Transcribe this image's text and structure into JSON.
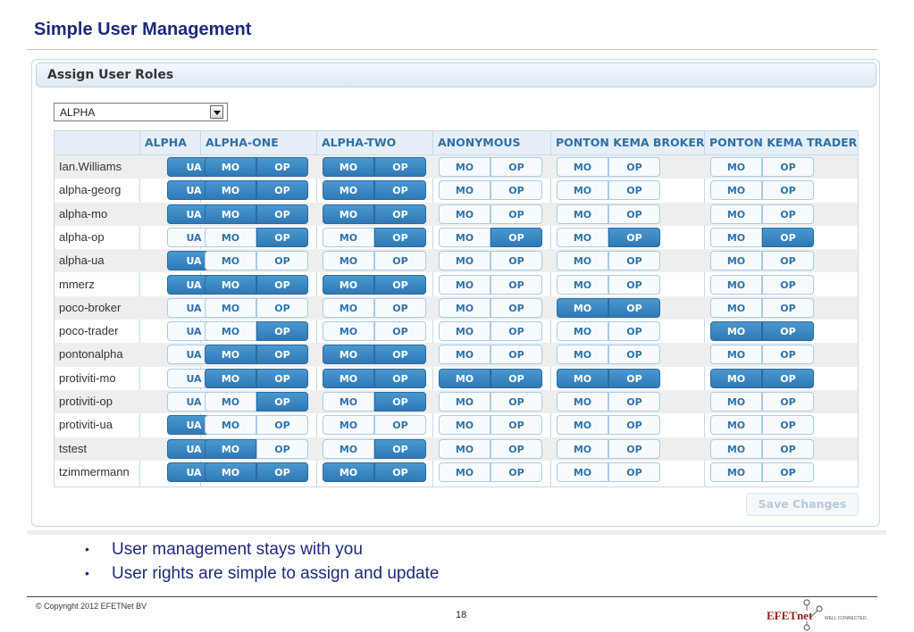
{
  "slide": {
    "title": "Simple User Management",
    "bullets": [
      "User management stays with you",
      "User rights are simple to assign and update"
    ],
    "copyright": "© Copyright 2012 EFETNet BV",
    "page_number": "18",
    "logo_text": "EFETnet",
    "logo_tagline": "WELL CONNECTED."
  },
  "panel": {
    "title": "Assign User Roles",
    "select_value": "ALPHA",
    "save_label": "Save Changes",
    "save_enabled": false
  },
  "colors": {
    "title": "#1d2a7a",
    "active_button": "#3a86c1",
    "header_text": "#2f6fa3"
  },
  "columns": [
    {
      "name": "ALPHA",
      "roles": [
        "UA"
      ]
    },
    {
      "name": "ALPHA-ONE",
      "roles": [
        "MO",
        "OP"
      ]
    },
    {
      "name": "ALPHA-TWO",
      "roles": [
        "MO",
        "OP"
      ]
    },
    {
      "name": "ANONYMOUS",
      "roles": [
        "MO",
        "OP"
      ]
    },
    {
      "name": "PONTON KEMA BROKER",
      "roles": [
        "MO",
        "OP"
      ]
    },
    {
      "name": "PONTON KEMA TRADER",
      "roles": [
        "MO",
        "OP"
      ]
    }
  ],
  "users": [
    {
      "name": "Ian.Williams",
      "roles": [
        [
          1
        ],
        [
          1,
          1
        ],
        [
          1,
          1
        ],
        [
          0,
          0
        ],
        [
          0,
          0
        ],
        [
          0,
          0
        ]
      ]
    },
    {
      "name": "alpha-georg",
      "roles": [
        [
          1
        ],
        [
          1,
          1
        ],
        [
          1,
          1
        ],
        [
          0,
          0
        ],
        [
          0,
          0
        ],
        [
          0,
          0
        ]
      ]
    },
    {
      "name": "alpha-mo",
      "roles": [
        [
          1
        ],
        [
          1,
          1
        ],
        [
          1,
          1
        ],
        [
          0,
          0
        ],
        [
          0,
          0
        ],
        [
          0,
          0
        ]
      ]
    },
    {
      "name": "alpha-op",
      "roles": [
        [
          0
        ],
        [
          0,
          1
        ],
        [
          0,
          1
        ],
        [
          0,
          1
        ],
        [
          0,
          1
        ],
        [
          0,
          1
        ]
      ]
    },
    {
      "name": "alpha-ua",
      "roles": [
        [
          1
        ],
        [
          0,
          0
        ],
        [
          0,
          0
        ],
        [
          0,
          0
        ],
        [
          0,
          0
        ],
        [
          0,
          0
        ]
      ]
    },
    {
      "name": "mmerz",
      "roles": [
        [
          1
        ],
        [
          1,
          1
        ],
        [
          1,
          1
        ],
        [
          0,
          0
        ],
        [
          0,
          0
        ],
        [
          0,
          0
        ]
      ]
    },
    {
      "name": "poco-broker",
      "roles": [
        [
          0
        ],
        [
          0,
          0
        ],
        [
          0,
          0
        ],
        [
          0,
          0
        ],
        [
          1,
          1
        ],
        [
          0,
          0
        ]
      ]
    },
    {
      "name": "poco-trader",
      "roles": [
        [
          0
        ],
        [
          0,
          1
        ],
        [
          0,
          0
        ],
        [
          0,
          0
        ],
        [
          0,
          0
        ],
        [
          1,
          1
        ]
      ]
    },
    {
      "name": "pontonalpha",
      "roles": [
        [
          0
        ],
        [
          1,
          1
        ],
        [
          1,
          1
        ],
        [
          0,
          0
        ],
        [
          0,
          0
        ],
        [
          0,
          0
        ]
      ]
    },
    {
      "name": "protiviti-mo",
      "roles": [
        [
          0
        ],
        [
          1,
          1
        ],
        [
          1,
          1
        ],
        [
          1,
          1
        ],
        [
          1,
          1
        ],
        [
          1,
          1
        ]
      ]
    },
    {
      "name": "protiviti-op",
      "roles": [
        [
          0
        ],
        [
          0,
          1
        ],
        [
          0,
          1
        ],
        [
          0,
          0
        ],
        [
          0,
          0
        ],
        [
          0,
          0
        ]
      ]
    },
    {
      "name": "protiviti-ua",
      "roles": [
        [
          1
        ],
        [
          0,
          0
        ],
        [
          0,
          0
        ],
        [
          0,
          0
        ],
        [
          0,
          0
        ],
        [
          0,
          0
        ]
      ]
    },
    {
      "name": "tstest",
      "roles": [
        [
          1
        ],
        [
          1,
          0
        ],
        [
          0,
          1
        ],
        [
          0,
          0
        ],
        [
          0,
          0
        ],
        [
          0,
          0
        ]
      ]
    },
    {
      "name": "tzimmermann",
      "roles": [
        [
          1
        ],
        [
          1,
          1
        ],
        [
          1,
          1
        ],
        [
          0,
          0
        ],
        [
          0,
          0
        ],
        [
          0,
          0
        ]
      ]
    }
  ]
}
